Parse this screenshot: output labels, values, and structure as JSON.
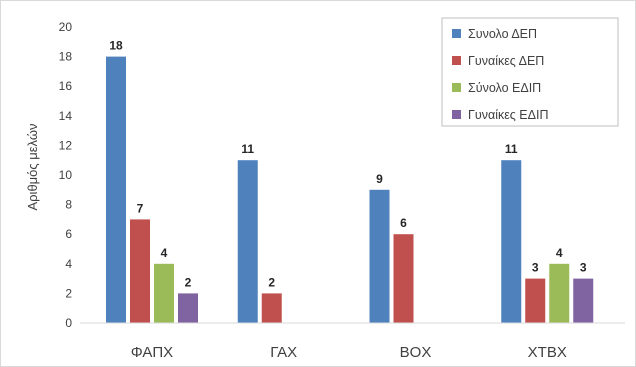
{
  "chart_data": {
    "type": "bar",
    "title": "",
    "xlabel": "",
    "ylabel": "Αριθμός μελών",
    "ylim": [
      0,
      20
    ],
    "yticks": [
      0,
      2,
      4,
      6,
      8,
      10,
      12,
      14,
      16,
      18,
      20
    ],
    "grid": false,
    "legend_position": "top-right",
    "categories": [
      "ΦΑΠΧ",
      "ΓΑΧ",
      "ΒΟΧ",
      "ΧΤΒΧ"
    ],
    "series": [
      {
        "name": "Συνολο ΔΕΠ",
        "color": "#4f81bd",
        "values": [
          18,
          11,
          9,
          11
        ]
      },
      {
        "name": "Γυναίκες ΔΕΠ",
        "color": "#c0504d",
        "values": [
          7,
          2,
          6,
          3
        ]
      },
      {
        "name": "Σύνολο ΕΔΙΠ",
        "color": "#9bbb59",
        "values": [
          4,
          null,
          null,
          4
        ]
      },
      {
        "name": "Γυναίκες ΕΔΙΠ",
        "color": "#8064a2",
        "values": [
          2,
          null,
          null,
          3
        ]
      }
    ]
  }
}
